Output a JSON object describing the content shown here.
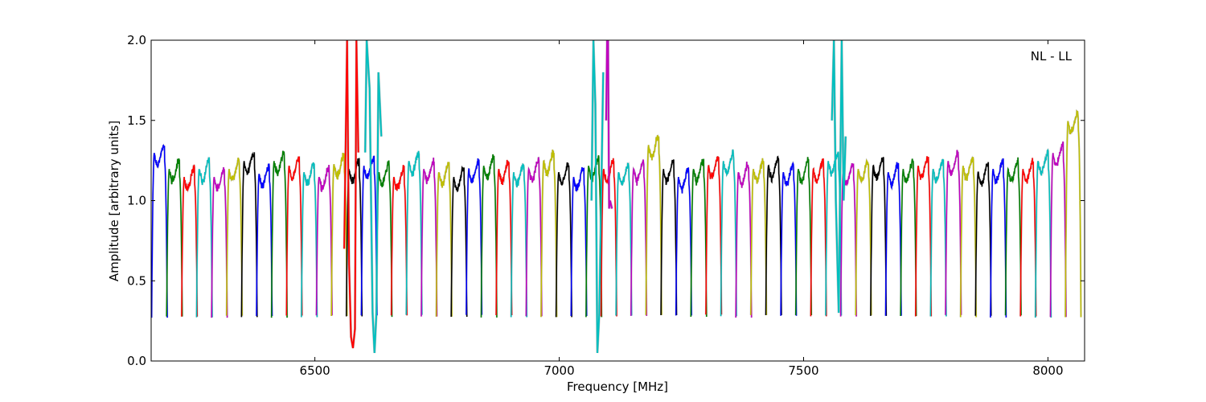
{
  "chart_data": {
    "type": "line",
    "title": "",
    "xlabel": "Frequency [MHz]",
    "ylabel": "Amplitude [arbitrary units]",
    "annotation": "NL - LL",
    "xlim": [
      6165,
      8075
    ],
    "ylim": [
      0.0,
      2.0
    ],
    "xticks": [
      6500,
      7000,
      7500,
      8000
    ],
    "yticks": [
      0.0,
      0.5,
      1.0,
      1.5,
      2.0
    ],
    "ytick_labels": [
      "0.0",
      "0.5",
      "1.0",
      "1.5",
      "2.0"
    ],
    "grid": false,
    "band_width_mhz": 32,
    "band_spacing_mhz": 30.65,
    "first_band_start_mhz": 6166,
    "num_bands": 62,
    "color_cycle": [
      "#0000ff",
      "#008000",
      "#ff0000",
      "#00bfbf",
      "#bf00bf",
      "#bfbf00",
      "#000000"
    ],
    "background_series_color": "#bfbfbf",
    "band_levels": [
      1.3,
      1.2,
      1.15,
      1.2,
      1.15,
      1.2,
      1.25,
      1.17,
      1.25,
      1.22,
      1.18,
      1.15,
      1.23,
      1.2,
      1.22,
      1.18,
      1.15,
      1.25,
      1.2,
      1.18,
      1.15,
      1.2,
      1.22,
      1.2,
      1.18,
      1.2,
      1.25,
      1.18,
      1.15,
      1.22,
      1.2,
      1.18,
      1.2,
      1.35,
      1.2,
      1.15,
      1.2,
      1.22,
      1.25,
      1.18,
      1.2,
      1.22,
      1.18,
      1.2,
      1.2,
      1.25,
      1.18,
      1.2,
      1.22,
      1.18,
      1.2,
      1.22,
      1.2,
      1.25,
      1.22,
      1.18,
      1.2,
      1.2,
      1.2,
      1.25,
      1.3,
      1.5
    ],
    "band_edges_min": 0.27,
    "rfi_features": [
      {
        "band": 9,
        "label": "spike",
        "x": [
          6560,
          6566,
          6570,
          6574,
          6578,
          6582,
          6585,
          6589
        ],
        "y": [
          0.7,
          2.0,
          0.6,
          0.15,
          0.08,
          0.2,
          2.0,
          1.3
        ]
      },
      {
        "band": 10,
        "label": "spike",
        "x": [
          6603,
          6606,
          6612,
          6618,
          6622,
          6626,
          6630,
          6636
        ],
        "y": [
          1.3,
          2.0,
          1.7,
          0.3,
          0.05,
          0.3,
          1.8,
          1.4
        ]
      },
      {
        "band": 17,
        "label": "spike",
        "x": [
          7066,
          7070,
          7074,
          7078,
          7082,
          7090
        ],
        "y": [
          1.0,
          2.0,
          1.6,
          0.05,
          0.3,
          1.8
        ]
      },
      {
        "band": 18,
        "label": "spike",
        "x": [
          7096,
          7098,
          7100,
          7102,
          7104,
          7108
        ],
        "y": [
          1.5,
          2.0,
          2.0,
          0.95,
          1.0,
          0.95
        ]
      },
      {
        "band": 45,
        "label": "spike",
        "x": [
          7558,
          7562,
          7566,
          7572,
          7578,
          7582,
          7586
        ],
        "y": [
          1.5,
          2.0,
          1.0,
          0.3,
          2.0,
          1.0,
          1.4
        ]
      }
    ]
  }
}
